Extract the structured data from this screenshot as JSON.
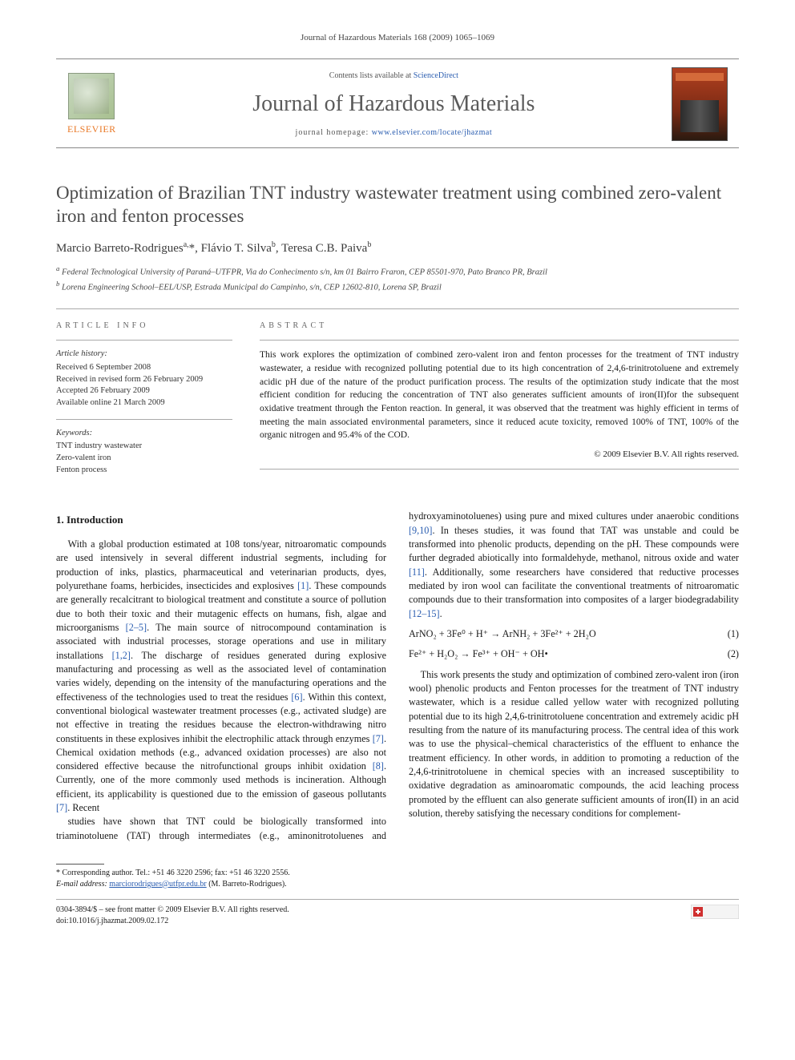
{
  "running_head": "Journal of Hazardous Materials 168 (2009) 1065–1069",
  "masthead": {
    "contents_prefix": "Contents lists available at ",
    "contents_link": "ScienceDirect",
    "journal_name": "Journal of Hazardous Materials",
    "homepage_prefix": "journal homepage: ",
    "homepage_url": "www.elsevier.com/locate/jhazmat",
    "publisher_label": "ELSEVIER"
  },
  "article": {
    "title": "Optimization of Brazilian TNT industry wastewater treatment using combined zero-valent iron and fenton processes",
    "authors_html": "Marcio Barreto-Rodrigues<sup>a,</sup>*, Flávio T. Silva<sup>b</sup>, Teresa C.B. Paiva<sup>b</sup>",
    "affiliations": {
      "a": "Federal Technological University of Paraná–UTFPR, Via do Conhecimento s/n, km 01 Bairro Fraron, CEP 85501-970, Pato Branco PR, Brazil",
      "b": "Lorena Engineering School–EEL/USP, Estrada Municipal do Campinho, s/n, CEP 12602-810, Lorena SP, Brazil"
    }
  },
  "info": {
    "head_left": "ARTICLE INFO",
    "head_right": "ABSTRACT",
    "history_label": "Article history:",
    "history": [
      "Received 6 September 2008",
      "Received in revised form 26 February 2009",
      "Accepted 26 February 2009",
      "Available online 21 March 2009"
    ],
    "keywords_label": "Keywords:",
    "keywords": [
      "TNT industry wastewater",
      "Zero-valent iron",
      "Fenton process"
    ],
    "abstract": "This work explores the optimization of combined zero-valent iron and fenton processes for the treatment of TNT industry wastewater, a residue with recognized polluting potential due to its high concentration of 2,4,6-trinitrotoluene and extremely acidic pH due of the nature of the product purification process. The results of the optimization study indicate that the most efficient condition for reducing the concentration of TNT also generates sufficient amounts of iron(II)for the subsequent oxidative treatment through the Fenton reaction. In general, it was observed that the treatment was highly efficient in terms of meeting the main associated environmental parameters, since it reduced acute toxicity, removed 100% of TNT, 100% of the organic nitrogen and 95.4% of the COD.",
    "copyright": "© 2009 Elsevier B.V. All rights reserved."
  },
  "sections": {
    "s1": {
      "number": "1.",
      "title": "Introduction",
      "para1": "With a global production estimated at 108 tons/year, nitroaromatic compounds are used intensively in several different industrial segments, including for production of inks, plastics, pharmaceutical and veterinarian products, dyes, polyurethane foams, herbicides, insecticides and explosives [1]. These compounds are generally recalcitrant to biological treatment and constitute a source of pollution due to both their toxic and their mutagenic effects on humans, fish, algae and microorganisms [2–5]. The main source of nitrocompound contamination is associated with industrial processes, storage operations and use in military installations [1,2]. The discharge of residues generated during explosive manufacturing and processing as well as the associated level of contamination varies widely, depending on the intensity of the manufacturing operations and the effectiveness of the technologies used to treat the residues [6]. Within this context, conventional biological wastewater treatment processes (e.g., activated sludge) are not effective in treating the residues because the electron-withdrawing nitro constituents in these explosives inhibit the electrophilic attack through enzymes [7]. Chemical oxidation methods (e.g., advanced oxidation processes) are also not considered effective because the nitrofunctional groups inhibit oxidation [8]. Currently, one of the more commonly used methods is incineration. Although efficient, its applicability is questioned due to the emission of gaseous pollutants [7]. Recent",
      "refs1": {
        "r1": "[1]",
        "r2": "[2–5]",
        "r3": "[1,2]",
        "r4": "[6]",
        "r5": "[7]",
        "r6": "[8]",
        "r7": "[7]"
      },
      "para2": "studies have shown that TNT could be biologically transformed into triaminotoluene (TAT) through intermediates (e.g., aminonitrotoluenes and hydroxyaminotoluenes) using pure and mixed cultures under anaerobic conditions [9,10]. In theses studies, it was found that TAT was unstable and could be transformed into phenolic products, depending on the pH. These compounds were further degraded abiotically into formaldehyde, methanol, nitrous oxide and water [11]. Additionally, some researchers have considered that reductive processes mediated by iron wool can facilitate the conventional treatments of nitroaromatic compounds due to their transformation into composites of a larger biodegradability [12–15].",
      "refs2": {
        "r1": "[9,10]",
        "r2": "[11]",
        "r3": "[12–15]"
      },
      "eqn1": "ArNO₂ + 3Fe⁰ + H⁺ → ArNH₂ + 3Fe²⁺ + 2H₂O",
      "eqn1_num": "(1)",
      "eqn2": "Fe²⁺ + H₂O₂ → Fe³⁺ + OH⁻ + OH•",
      "eqn2_num": "(2)",
      "para3": "This work presents the study and optimization of combined zero-valent iron (iron wool) phenolic products and Fenton processes for the treatment of TNT industry wastewater, which is a residue called yellow water with recognized polluting potential due to its high 2,4,6-trinitrotoluene concentration and extremely acidic pH resulting from the nature of its manufacturing process. The central idea of this work was to use the physical–chemical characteristics of the effluent to enhance the treatment efficiency. In other words, in addition to promoting a reduction of the 2,4,6-trinitrotoluene in chemical species with an increased susceptibility to oxidative degradation as aminoaromatic compounds, the acid leaching process promoted by the effluent can also generate sufficient amounts of iron(II) in an acid solution, thereby satisfying the necessary conditions for complement-"
    }
  },
  "footnotes": {
    "corr": "* Corresponding author. Tel.: +51 46 3220 2596; fax: +51 46 3220 2556.",
    "email_label": "E-mail address:",
    "email": "marciorodrigues@utfpr.edu.br",
    "email_person": "(M. Barreto-Rodrigues)."
  },
  "footer": {
    "left1": "0304-3894/$ – see front matter © 2009 Elsevier B.V. All rights reserved.",
    "left2": "doi:10.1016/j.jhazmat.2009.02.172"
  },
  "colors": {
    "link": "#2a5db0",
    "publisher": "#e97826",
    "title_gray": "#4c4c4c",
    "rule": "#aaaaaa"
  }
}
